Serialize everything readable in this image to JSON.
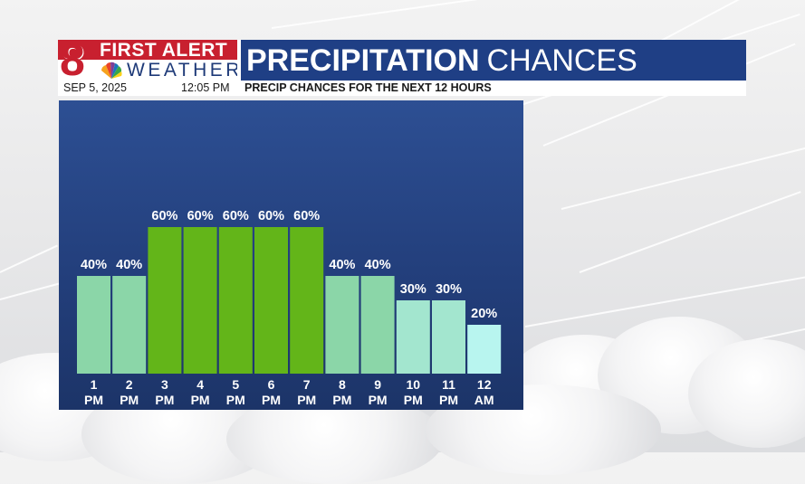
{
  "header": {
    "logo_number": "8",
    "logo_top": "FIRST ALERT",
    "logo_bottom": "WEATHER",
    "title_bold": "PRECIPITATION",
    "title_light": "CHANCES",
    "date": "SEP 5, 2025",
    "time": "12:05 PM",
    "caption": "PRECIP CHANCES FOR THE NEXT 12 HOURS"
  },
  "colors": {
    "brand_red": "#c8202f",
    "title_blue": "#1f3f85",
    "bar_high": "#63b519",
    "bar_40": "#8bd6a8",
    "bar_30": "#a3e6cf",
    "bar_20": "#b8f5ef"
  },
  "chart_data": {
    "type": "bar",
    "title": "",
    "categories": [
      [
        "1",
        "PM"
      ],
      [
        "2",
        "PM"
      ],
      [
        "3",
        "PM"
      ],
      [
        "4",
        "PM"
      ],
      [
        "5",
        "PM"
      ],
      [
        "6",
        "PM"
      ],
      [
        "7",
        "PM"
      ],
      [
        "8",
        "PM"
      ],
      [
        "9",
        "PM"
      ],
      [
        "10",
        "PM"
      ],
      [
        "11",
        "PM"
      ],
      [
        "12",
        "AM"
      ]
    ],
    "values": [
      40,
      40,
      60,
      60,
      60,
      60,
      60,
      40,
      40,
      30,
      30,
      20
    ],
    "value_labels": [
      "40%",
      "40%",
      "60%",
      "60%",
      "60%",
      "60%",
      "60%",
      "40%",
      "40%",
      "30%",
      "30%",
      "20%"
    ],
    "unit": "%",
    "ylim": [
      0,
      100
    ],
    "grid": false,
    "legend": "none"
  }
}
